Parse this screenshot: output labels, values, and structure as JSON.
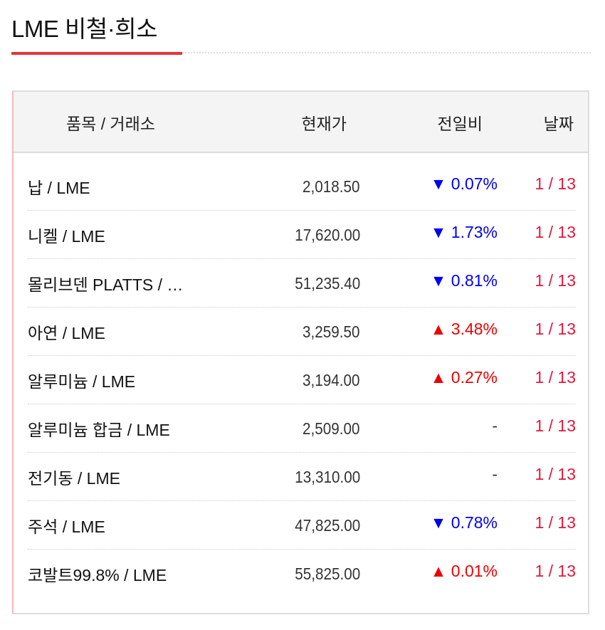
{
  "title": "LME 비철·희소",
  "colors": {
    "accent": "#e8323a",
    "down": "#0000ee",
    "up": "#ee0000",
    "date": "#e0193c"
  },
  "headers": {
    "item": "품목 / 거래소",
    "price": "현재가",
    "change": "전일비",
    "date": "날짜"
  },
  "rows": [
    {
      "name": "납 / LME",
      "price": "2,018.50",
      "dir": "down",
      "arrow": "▼",
      "change": "0.07%",
      "date": "1 / 13"
    },
    {
      "name": "니켈 / LME",
      "price": "17,620.00",
      "dir": "down",
      "arrow": "▼",
      "change": "1.73%",
      "date": "1 / 13"
    },
    {
      "name": "몰리브덴 PLATTS / …",
      "price": "51,235.40",
      "dir": "down",
      "arrow": "▼",
      "change": "0.81%",
      "date": "1 / 13"
    },
    {
      "name": "아연 / LME",
      "price": "3,259.50",
      "dir": "up",
      "arrow": "▲",
      "change": "3.48%",
      "date": "1 / 13"
    },
    {
      "name": "알루미늄 / LME",
      "price": "3,194.00",
      "dir": "up",
      "arrow": "▲",
      "change": "0.27%",
      "date": "1 / 13"
    },
    {
      "name": "알루미늄 합금 / LME",
      "price": "2,509.00",
      "dir": "flat",
      "arrow": "",
      "change": "-",
      "date": "1 / 13"
    },
    {
      "name": "전기동 / LME",
      "price": "13,310.00",
      "dir": "flat",
      "arrow": "",
      "change": "-",
      "date": "1 / 13"
    },
    {
      "name": "주석 / LME",
      "price": "47,825.00",
      "dir": "down",
      "arrow": "▼",
      "change": "0.78%",
      "date": "1 / 13"
    },
    {
      "name": "코발트99.8% / LME",
      "price": "55,825.00",
      "dir": "up",
      "arrow": "▲",
      "change": "0.01%",
      "date": "1 / 13"
    }
  ]
}
